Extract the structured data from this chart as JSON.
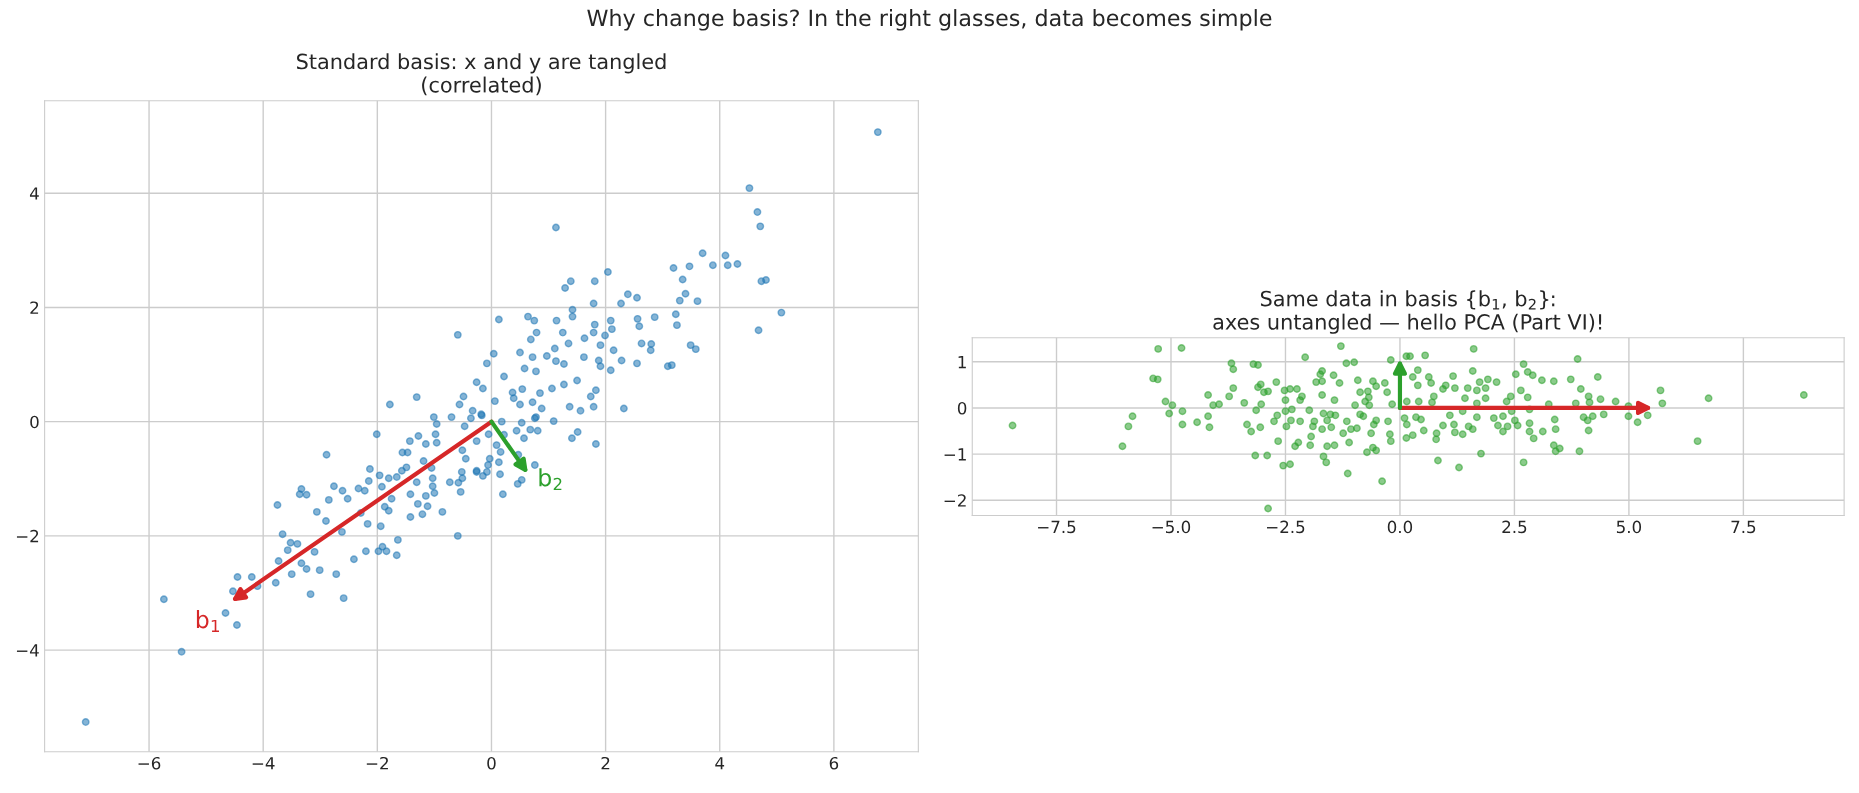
{
  "chart_data": [
    {
      "type": "scatter",
      "title": "Standard basis: x and y are tangled\n(correlated)",
      "grid": true,
      "marker": "circle",
      "xlim": [
        -7.83,
        7.48
      ],
      "ylim": [
        -5.78,
        5.62
      ],
      "xticks": [
        -6,
        -4,
        -2,
        0,
        2,
        4,
        6
      ],
      "yticks": [
        -4,
        -2,
        0,
        2,
        4
      ],
      "annotations": [
        "Why change basis? In the right glasses, data becomes simple",
        "b$_{1}$",
        "b$_{2}$"
      ],
      "series": [
        {
          "color": "#1f77b4",
          "x": [
            6.77,
            4.52,
            4.66,
            4.71,
            1.13,
            3.7,
            4.1,
            3.19,
            3.47,
            3.88,
            4.14,
            4.31,
            2.04,
            3.35,
            4.73,
            4.81,
            1.39,
            1.81,
            1.29,
            2.39,
            2.55,
            3.4,
            3.3,
            3.61,
            1.79,
            2.27,
            1.42,
            5.08,
            0.13,
            0.64,
            0.75,
            1.14,
            1.42,
            2.56,
            2.86,
            3.23,
            1.81,
            2.09,
            2.59,
            3.25,
            4.68,
            -0.59,
            0.79,
            1.25,
            0.69,
            1.63,
            1.79,
            2.11,
            1.99,
            0.5,
            1.11,
            1.35,
            1.91,
            2.14,
            2.63,
            2.8,
            2.79,
            3.49,
            3.58,
            0.04,
            -0.08,
            0.72,
            0.97,
            1.13,
            1.27,
            1.62,
            1.88,
            1.91,
            2.09,
            2.28,
            2.55,
            3.09,
            3.16,
            0.58,
            0.78,
            0.22,
            -0.26,
            -0.15,
            0.54,
            0.85,
            1.06,
            1.27,
            1.5,
            1.83,
            1.74,
            -0.49,
            -0.56,
            0.06,
            0.37,
            0.39,
            0.5,
            0.72,
            0.88,
            1.37,
            1.56,
            1.79,
            2.32,
            -0.7,
            -0.33,
            -0.17,
            0.18,
            1.09,
            0.78,
            -1.78,
            -1.31,
            -1.01,
            -7.11,
            -5.74,
            -5.43,
            -4.66,
            -4.46,
            -4.45,
            -4.2,
            -4.53,
            -4.1,
            -3.78,
            -3.75,
            -3.66,
            -3.52,
            -3.4,
            -3.57,
            -3.73,
            -3.5,
            -3.33,
            -3.24,
            -3.17,
            -3.01,
            -3.1,
            -2.72,
            -2.59,
            -2.41,
            -3.33,
            -3.36,
            -3.24,
            -3.06,
            -2.9,
            -2.85,
            -2.76,
            -2.61,
            -2.52,
            -2.89,
            -2.62,
            -2.33,
            -2.22,
            -2.15,
            -2.29,
            -2.17,
            -2.13,
            -2.01,
            -1.96,
            -1.92,
            -1.94,
            -2.2,
            -1.98,
            -1.91,
            -1.84,
            -1.64,
            -1.66,
            -1.87,
            -1.8,
            -1.75,
            -1.8,
            -1.66,
            -1.57,
            -1.49,
            -1.56,
            -1.47,
            -1.43,
            -1.28,
            -1.15,
            -1.19,
            -1.31,
            -1.42,
            -1.29,
            -1.42,
            -1.21,
            -1.12,
            -1.15,
            -1.0,
            -0.86,
            -1.03,
            -1.03,
            -1.05,
            -0.98,
            -0.96,
            -0.96,
            -0.73,
            -0.59,
            -0.54,
            -0.58,
            -0.51,
            -0.52,
            -0.45,
            -0.51,
            -0.47,
            -0.26,
            1.83,
            1.51,
            1.41,
            0.76,
            0.53,
            0.46,
            0.2,
            0.15,
            0.47,
            0.57,
            0.44,
            0.53,
            0.81,
            0.68,
            0.22,
            0.09,
            0.16,
            0.13,
            -0.03,
            -0.06,
            -0.08,
            -0.15,
            -0.26,
            -0.26,
            -0.05,
            -0.18,
            -0.36,
            0.76
          ],
          "values": [
            5.07,
            4.09,
            3.67,
            3.42,
            3.4,
            2.95,
            2.91,
            2.69,
            2.72,
            2.74,
            2.74,
            2.76,
            2.62,
            2.49,
            2.46,
            2.48,
            2.46,
            2.46,
            2.34,
            2.23,
            2.17,
            2.24,
            2.12,
            2.11,
            2.07,
            2.07,
            1.96,
            1.91,
            1.79,
            1.84,
            1.77,
            1.77,
            1.84,
            1.8,
            1.83,
            1.88,
            1.7,
            1.77,
            1.67,
            1.69,
            1.6,
            1.52,
            1.56,
            1.56,
            1.44,
            1.46,
            1.56,
            1.62,
            1.51,
            1.21,
            1.28,
            1.37,
            1.34,
            1.25,
            1.37,
            1.36,
            1.25,
            1.34,
            1.27,
            1.19,
            1.02,
            1.13,
            1.15,
            1.06,
            1.01,
            1.13,
            1.07,
            0.97,
            0.9,
            1.07,
            1.02,
            0.97,
            0.99,
            0.93,
            0.88,
            0.79,
            0.69,
            0.58,
            0.57,
            0.5,
            0.58,
            0.65,
            0.72,
            0.55,
            0.44,
            0.44,
            0.3,
            0.36,
            0.51,
            0.41,
            0.3,
            0.34,
            0.23,
            0.26,
            0.19,
            0.26,
            0.23,
            0.08,
            0.19,
            0.11,
            0.0,
            0.01,
            0.08,
            0.3,
            0.43,
            0.08,
            -5.26,
            -3.11,
            -4.03,
            -3.35,
            -3.56,
            -2.72,
            -2.72,
            -2.97,
            -2.88,
            -2.82,
            -1.46,
            -1.97,
            -2.12,
            -2.14,
            -2.25,
            -2.44,
            -2.67,
            -2.48,
            -2.58,
            -3.02,
            -2.6,
            -2.28,
            -2.67,
            -3.09,
            -2.41,
            -1.18,
            -1.27,
            -1.28,
            -1.58,
            -1.74,
            -1.37,
            -1.13,
            -1.21,
            -1.35,
            -0.58,
            -1.93,
            -1.17,
            -1.21,
            -1.04,
            -1.6,
            -1.79,
            -0.83,
            -0.22,
            -0.94,
            -1.14,
            -1.83,
            -2.27,
            -2.27,
            -2.19,
            -2.27,
            -2.07,
            -2.34,
            -1.49,
            -1.56,
            -1.35,
            -0.99,
            -0.97,
            -0.86,
            -0.8,
            -0.54,
            -0.54,
            -0.34,
            -0.25,
            -0.39,
            -0.69,
            -1.06,
            -1.27,
            -1.44,
            -1.67,
            -1.62,
            -1.48,
            -1.3,
            -1.25,
            -1.58,
            -1.13,
            -0.99,
            -0.81,
            -0.22,
            -0.04,
            -0.37,
            -1.06,
            -2.0,
            -1.23,
            -1.07,
            -0.99,
            -0.88,
            -0.65,
            -0.5,
            -0.08,
            -0.86,
            -0.39,
            -0.18,
            -0.29,
            -0.76,
            -1.02,
            -1.09,
            -1.27,
            -0.92,
            -0.58,
            -0.29,
            -0.16,
            -0.02,
            -0.16,
            -0.14,
            -0.23,
            -0.41,
            -0.53,
            -0.71,
            -0.65,
            -0.76,
            -0.88,
            -0.95,
            -0.88,
            -0.34,
            -0.22,
            0.13,
            0.06,
            0.06
          ]
        }
      ]
    },
    {
      "type": "scatter",
      "title": "Same data in basis {b$_{1}$, b$_{2}$}:\naxes untangled — hello PCA (Part VI)!",
      "grid": true,
      "marker": "circle",
      "xlim": [
        -9.34,
        9.7
      ],
      "ylim": [
        -2.33,
        1.52
      ],
      "xticks": [
        {
          "value": -7.5,
          "label": "−7.5"
        },
        {
          "value": -5,
          "label": "−5.0"
        },
        {
          "value": -2.5,
          "label": "−2.5"
        },
        {
          "value": 0,
          "label": "0.0"
        },
        {
          "value": 2.5,
          "label": "2.5"
        },
        {
          "value": 5,
          "label": "5.0"
        },
        {
          "value": 7.5,
          "label": "7.5"
        }
      ],
      "yticks": [
        -2,
        -1,
        0,
        1
      ],
      "series": [
        {
          "color": "#2ca02c",
          "x": [
            -8.46,
            -6.06,
            -5.93,
            -5.84,
            -5.28,
            -4.77,
            -5.39,
            -5.29,
            -5.12,
            -5.04,
            -4.97,
            -4.75,
            -4.75,
            -4.43,
            -4.19,
            -4.19,
            -4.16,
            -4.08,
            -3.95,
            -3.73,
            -3.68,
            -3.64,
            -3.64,
            -3.4,
            -3.34,
            -3.25,
            -3.2,
            -3.1,
            -3.16,
            -2.9,
            -3.05,
            -3.14,
            -3.1,
            -3.04,
            -2.97,
            -2.88,
            -3.03,
            -2.88,
            -2.7,
            -2.75,
            -2.68,
            -2.66,
            -2.55,
            -2.4,
            -2.52,
            -2.5,
            -2.5,
            -2.48,
            -2.38,
            -2.36,
            -2.4,
            -2.25,
            -2.18,
            -2.14,
            -2.18,
            -2.29,
            -2.22,
            -2.07,
            -1.98,
            -1.96,
            -1.94,
            -1.9,
            -1.87,
            -1.83,
            -1.7,
            -1.74,
            -1.7,
            -1.7,
            -1.7,
            -1.67,
            -1.67,
            -1.61,
            -1.59,
            -1.59,
            -1.52,
            -1.5,
            -1.45,
            -1.43,
            -1.41,
            -1.43,
            -1.32,
            -1.29,
            -1.24,
            -1.17,
            -1.0,
            -1.16,
            -1.14,
            -1.11,
            -1.07,
            -0.98,
            -0.92,
            -0.94,
            -0.87,
            -0.87,
            -0.8,
            -0.76,
            -0.72,
            -0.63,
            -0.59,
            -0.52,
            -0.57,
            -0.52,
            -0.59,
            -0.52,
            -0.39,
            -0.33,
            -0.28,
            -0.26,
            -0.22,
            -0.2,
            -0.2,
            -0.17,
            -0.7,
            -0.68,
            -0.67,
            0.14,
            0.14,
            0.1,
            8.82,
            6.74,
            6.5,
            5.69,
            5.73,
            5.41,
            5.19,
            4.99,
            4.99,
            4.71,
            4.45,
            4.38,
            4.32,
            4.12,
            4.14,
            4.12,
            4.1,
            4.21,
            4.01,
            3.92,
            3.95,
            3.88,
            3.73,
            3.84,
            3.36,
            3.1,
            3.38,
            3.4,
            3.36,
            3.49,
            3.4,
            3.12,
            3.25,
            2.7,
            2.7,
            2.79,
            2.9,
            2.53,
            2.64,
            2.79,
            2.83,
            2.83,
            2.83,
            2.92,
            2.57,
            2.51,
            2.44,
            2.42,
            2.33,
            2.25,
            2.25,
            2.35,
            2.11,
            2.14,
            2.05,
            1.92,
            1.87,
            1.87,
            1.74,
            1.68,
            1.61,
            1.59,
            1.68,
            1.68,
            1.77,
            1.59,
            1.5,
            1.48,
            1.42,
            1.37,
            1.37,
            1.29,
            1.2,
            1.16,
            1.18,
            1.2,
            1.09,
            1.0,
            0.94,
            0.94,
            0.83,
            0.79,
            0.8,
            0.74,
            0.7,
            0.68,
            0.63,
            0.52,
            0.55,
            0.41,
            0.39,
            0.28,
            0.28,
            0.46,
            0.35,
            0.15,
            0.22,
            0.15,
            0.39
          ],
          "values": [
            -0.38,
            -0.83,
            -0.4,
            -0.18,
            1.28,
            1.3,
            0.64,
            0.62,
            0.14,
            -0.12,
            0.06,
            -0.07,
            -0.36,
            -0.31,
            0.28,
            -0.18,
            -0.42,
            0.06,
            0.08,
            0.25,
            0.97,
            0.84,
            0.43,
            0.11,
            -0.36,
            -0.51,
            0.95,
            0.93,
            -1.03,
            -1.03,
            -0.42,
            -0.05,
            0.45,
            0.51,
            0.34,
            0.36,
            0.08,
            -2.18,
            0.56,
            -0.29,
            -0.16,
            -0.72,
            -1.25,
            -1.22,
            0.38,
            0.17,
            -0.07,
            -0.4,
            -0.27,
            -0.03,
            0.41,
            0.41,
            0.17,
            0.25,
            -0.29,
            -0.83,
            -0.75,
            1.1,
            -0.05,
            -0.81,
            -0.62,
            -0.4,
            -0.29,
            0.56,
            0.58,
            0.73,
            0.8,
            0.28,
            -0.46,
            -0.12,
            -1.05,
            -1.18,
            -0.83,
            -0.27,
            -0.14,
            -0.42,
            0.71,
            -0.81,
            -0.16,
            0.17,
            0.54,
            1.34,
            -0.55,
            0.97,
            0.99,
            -0.29,
            -1.42,
            -0.75,
            -0.46,
            0.06,
            0.6,
            -0.44,
            0.34,
            -0.14,
            -0.18,
            0.14,
            -0.96,
            -0.55,
            -0.86,
            -0.92,
            -0.36,
            -0.27,
            0.58,
            0.47,
            -1.59,
            0.54,
            0.34,
            -0.29,
            -0.57,
            -0.72,
            1.04,
            0.08,
            0.36,
            0.23,
            0.06,
            1.12,
            -0.65,
            -0.22,
            0.28,
            0.21,
            -0.72,
            0.38,
            0.1,
            -0.16,
            -0.31,
            -0.18,
            0.04,
            0.14,
            -0.14,
            0.19,
            0.67,
            0.25,
            0.12,
            -0.49,
            -0.27,
            -0.18,
            -0.2,
            -0.94,
            0.41,
            1.06,
            0.62,
            0.1,
            0.58,
            0.6,
            -0.25,
            -0.46,
            -0.81,
            -0.88,
            -0.94,
            -0.51,
            0.08,
            -1.18,
            0.95,
            0.78,
            0.71,
            0.73,
            0.38,
            0.23,
            -0.03,
            -0.33,
            -0.51,
            -0.66,
            -0.38,
            -0.27,
            -0.07,
            0.25,
            0.14,
            -0.18,
            -0.51,
            -0.4,
            0.56,
            -0.38,
            -0.22,
            0.62,
            0.43,
            0.21,
            0.56,
            0.38,
            1.28,
            0.8,
            0.1,
            -0.2,
            -0.99,
            -0.46,
            -0.4,
            0.43,
            0.21,
            -0.07,
            -0.57,
            -1.29,
            0.43,
            0.69,
            -0.36,
            -0.53,
            -0.16,
            0.49,
            0.41,
            -0.38,
            -1.14,
            -0.68,
            -0.55,
            0.25,
            0.12,
            0.54,
            0.67,
            -0.49,
            1.14,
            0.14,
            0.82,
            0.67,
            -0.59,
            -0.25,
            -0.2,
            -0.36,
            1.12,
            0.14,
            0.49
          ]
        }
      ]
    }
  ]
}
